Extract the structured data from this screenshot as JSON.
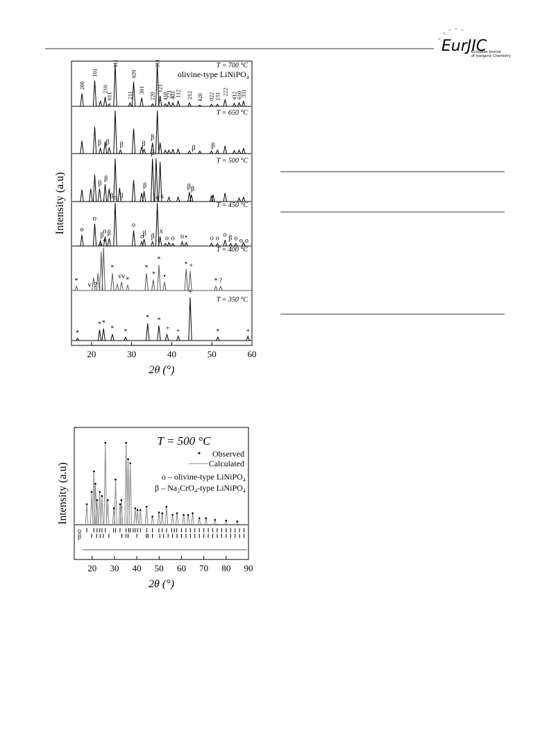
{
  "header": {
    "logo": "EurJIC",
    "journal_1": "European Journal",
    "journal_2": "of Inorganic Chemistry"
  },
  "chart_data": [
    {
      "type": "peaks",
      "xlabel": "2θ (°)",
      "ylabel": "Intensity (a.u)",
      "xlim": [
        15,
        60
      ],
      "xticks": [
        20,
        30,
        40,
        50,
        60
      ],
      "series": [
        {
          "name": "T = 700 °C",
          "subtitle": "olivine-type LiNiPO₄",
          "color": "#000000",
          "label_orientation": "vertical",
          "x": [
            17.6,
            20.8,
            22.2,
            23.4,
            24.4,
            25.9,
            29.6,
            30.5,
            32.5,
            35.2,
            36.4,
            37.1,
            38.4,
            39.3,
            40.3,
            41.6,
            44.4,
            47.0,
            49.9,
            51.4,
            53.3,
            55.6,
            56.8,
            57.9
          ],
          "values": [
            30,
            60,
            12,
            22,
            6,
            100,
            8,
            57,
            20,
            6,
            100,
            24,
            6,
            10,
            8,
            12,
            8,
            3,
            5,
            5,
            16,
            7,
            8,
            12
          ],
          "annotations": [
            {
              "x": 17.6,
              "label": "200"
            },
            {
              "x": 20.8,
              "label": "101"
            },
            {
              "x": 23.4,
              "label": "210"
            },
            {
              "x": 24.4,
              "label": "011"
            },
            {
              "x": 25.9,
              "label": "111"
            },
            {
              "x": 29.6,
              "label": "211"
            },
            {
              "x": 30.5,
              "label": "020"
            },
            {
              "x": 32.5,
              "label": "301"
            },
            {
              "x": 35.2,
              "label": "220"
            },
            {
              "x": 36.4,
              "label": "311"
            },
            {
              "x": 37.1,
              "label": "121"
            },
            {
              "x": 38.4,
              "label": "410"
            },
            {
              "x": 39.3,
              "label": "221"
            },
            {
              "x": 40.3,
              "label": "401"
            },
            {
              "x": 41.6,
              "label": "112"
            },
            {
              "x": 44.4,
              "label": "212"
            },
            {
              "x": 47.0,
              "label": "420"
            },
            {
              "x": 49.9,
              "label": "022"
            },
            {
              "x": 51.4,
              "label": "131"
            },
            {
              "x": 53.3,
              "label": "222"
            },
            {
              "x": 55.6,
              "label": "412"
            },
            {
              "x": 56.8,
              "label": "610"
            },
            {
              "x": 57.9,
              "label": "331"
            }
          ]
        },
        {
          "name": "T = 650 °C",
          "color": "#000000",
          "x": [
            17.6,
            20.8,
            22.2,
            23.4,
            24.4,
            25.9,
            27.2,
            30.5,
            32.5,
            33.1,
            35.2,
            36.4,
            37.1,
            38.4,
            39.3,
            40.3,
            41.6,
            44.4,
            47.0,
            49.9,
            51.4,
            53.3,
            55.6,
            56.8,
            57.9
          ],
          "values": [
            30,
            62,
            12,
            28,
            14,
            100,
            8,
            58,
            16,
            10,
            25,
            100,
            25,
            8,
            8,
            10,
            10,
            6,
            6,
            6,
            8,
            18,
            7,
            8,
            12
          ],
          "annotations": [
            {
              "x": 22.0,
              "label": "β"
            },
            {
              "x": 24.0,
              "label": "β"
            },
            {
              "x": 27.5,
              "label": "β"
            },
            {
              "x": 33.0,
              "label": "β"
            },
            {
              "x": 35.2,
              "label": "β"
            },
            {
              "x": 45.5,
              "label": "β"
            },
            {
              "x": 50.3,
              "label": "β"
            }
          ]
        },
        {
          "name": "T = 500 °C",
          "color": "#000000",
          "x": [
            17.6,
            19.8,
            20.8,
            22.0,
            23.4,
            24.4,
            25.9,
            27.0,
            30.5,
            32.5,
            33.1,
            35.2,
            36.1,
            37.1,
            39.3,
            41.6,
            44.4,
            44.9,
            49.9,
            50.3,
            53.3,
            56.8,
            57.9
          ],
          "values": [
            28,
            30,
            62,
            30,
            40,
            30,
            100,
            32,
            50,
            20,
            24,
            100,
            100,
            92,
            10,
            10,
            22,
            16,
            14,
            16,
            20,
            8,
            10
          ],
          "annotations": [
            {
              "x": 22.1,
              "label": "β"
            },
            {
              "x": 23.6,
              "label": "β"
            },
            {
              "x": 25.0,
              "label": "β"
            },
            {
              "x": 27.5,
              "label": "β"
            },
            {
              "x": 33.3,
              "label": "β"
            },
            {
              "x": 35.2,
              "label": "β"
            },
            {
              "x": 37.6,
              "label": "x"
            },
            {
              "x": 44.3,
              "label": "β"
            },
            {
              "x": 45.2,
              "label": "β"
            }
          ]
        },
        {
          "name": "T = 450 °C",
          "color": "#000000",
          "x": [
            17.6,
            20.8,
            22.2,
            23.4,
            24.4,
            25.9,
            30.5,
            32.5,
            33.1,
            35.2,
            36.4,
            37.1,
            38.4,
            39.3,
            40.3,
            42.6,
            43.6,
            49.9,
            51.4,
            53.3,
            54.7,
            56.0,
            57.9
          ],
          "values": [
            26,
            52,
            12,
            22,
            18,
            100,
            36,
            10,
            16,
            10,
            100,
            22,
            6,
            8,
            6,
            10,
            8,
            6,
            6,
            14,
            6,
            6,
            8
          ],
          "annotations": [
            {
              "x": 17.6,
              "label": "o"
            },
            {
              "x": 20.8,
              "label": "o"
            },
            {
              "x": 22.6,
              "label": "β"
            },
            {
              "x": 23.3,
              "label": "o"
            },
            {
              "x": 24.4,
              "label": "β"
            },
            {
              "x": 25.9,
              "label": "o"
            },
            {
              "x": 30.5,
              "label": "o"
            },
            {
              "x": 32.6,
              "label": "o"
            },
            {
              "x": 33.2,
              "label": "β"
            },
            {
              "x": 35.3,
              "label": "β"
            },
            {
              "x": 36.4,
              "label": "o"
            },
            {
              "x": 37.4,
              "label": "x"
            },
            {
              "x": 38.8,
              "label": "o"
            },
            {
              "x": 40.3,
              "label": "o"
            },
            {
              "x": 42.6,
              "label": "o"
            },
            {
              "x": 43.6,
              "label": "•"
            },
            {
              "x": 50.0,
              "label": "o"
            },
            {
              "x": 51.4,
              "label": "o"
            },
            {
              "x": 53.3,
              "label": "o"
            },
            {
              "x": 54.6,
              "label": "β"
            },
            {
              "x": 56.0,
              "label": "o"
            },
            {
              "x": 57.3,
              "label": "o"
            },
            {
              "x": 58.7,
              "label": "o"
            }
          ]
        },
        {
          "name": "T = 400 °C",
          "color": "#555555",
          "x": [
            16.2,
            20.5,
            21.6,
            22.4,
            23.0,
            25.2,
            26.4,
            27.5,
            29.0,
            33.7,
            35.4,
            36.8,
            38.2,
            43.6,
            44.6,
            51.0,
            52.2
          ],
          "values": [
            10,
            30,
            40,
            90,
            100,
            40,
            15,
            20,
            12,
            40,
            25,
            60,
            20,
            50,
            45,
            10,
            10
          ],
          "annotations": [
            {
              "x": 16.2,
              "label": "*"
            },
            {
              "x": 19.5,
              "label": "v"
            },
            {
              "x": 21.0,
              "label": "?"
            },
            {
              "x": 22.3,
              "label": "*"
            },
            {
              "x": 23.2,
              "label": "*"
            },
            {
              "x": 25.2,
              "label": "*"
            },
            {
              "x": 27.5,
              "label": "vv"
            },
            {
              "x": 29.0,
              "label": "*"
            },
            {
              "x": 33.7,
              "label": "*"
            },
            {
              "x": 35.5,
              "label": "*"
            },
            {
              "x": 36.8,
              "label": "*"
            },
            {
              "x": 38.2,
              "label": "•"
            },
            {
              "x": 43.6,
              "label": "•"
            },
            {
              "x": 44.8,
              "label": "+"
            },
            {
              "x": 51.0,
              "label": "*"
            },
            {
              "x": 52.2,
              "label": "?"
            }
          ]
        },
        {
          "name": "T = 350 °C",
          "color": "#000000",
          "x": [
            16.5,
            22.0,
            23.0,
            25.2,
            28.5,
            34.0,
            36.8,
            38.8,
            41.6,
            44.6,
            51.5,
            59.0
          ],
          "values": [
            5,
            25,
            28,
            15,
            8,
            40,
            35,
            15,
            10,
            100,
            8,
            10
          ],
          "annotations": [
            {
              "x": 16.5,
              "label": "*"
            },
            {
              "x": 22.0,
              "label": "*"
            },
            {
              "x": 23.0,
              "label": "*"
            },
            {
              "x": 25.2,
              "label": "*"
            },
            {
              "x": 28.5,
              "label": "*"
            },
            {
              "x": 34.0,
              "label": "*"
            },
            {
              "x": 36.8,
              "label": "*"
            },
            {
              "x": 39.0,
              "label": "+"
            },
            {
              "x": 41.6,
              "label": "+"
            },
            {
              "x": 44.6,
              "label": "+"
            },
            {
              "x": 51.5,
              "label": "*"
            },
            {
              "x": 59.0,
              "label": "+"
            }
          ]
        }
      ]
    },
    {
      "type": "rietveld",
      "title": "T = 500 °C",
      "xlabel": "2θ (°)",
      "ylabel": "Intensity (a.u)",
      "xlim": [
        12,
        90
      ],
      "xticks": [
        20,
        30,
        40,
        50,
        60,
        70,
        80,
        90
      ],
      "series": [
        {
          "name": "Observed",
          "color": "#000000",
          "x": [
            17.6,
            19.8,
            20.8,
            21.5,
            22.2,
            23.4,
            24.4,
            25.9,
            27.0,
            29.7,
            30.5,
            32.5,
            33.1,
            35.2,
            36.1,
            37.1,
            39.3,
            40.3,
            41.6,
            44.4,
            47,
            49.9,
            51.4,
            53.3,
            56,
            58,
            61,
            63,
            65,
            68,
            71,
            75,
            80,
            85
          ],
          "values": [
            25,
            40,
            65,
            50,
            30,
            40,
            35,
            100,
            30,
            20,
            55,
            25,
            30,
            100,
            80,
            75,
            20,
            18,
            18,
            22,
            10,
            15,
            14,
            22,
            12,
            14,
            12,
            12,
            14,
            8,
            8,
            6,
            5,
            4
          ]
        },
        {
          "name": "Calculated",
          "color": "#888888",
          "x": [
            17.6,
            19.8,
            20.8,
            21.5,
            22.2,
            23.4,
            24.4,
            25.9,
            27.0,
            29.7,
            30.5,
            32.5,
            33.1,
            35.2,
            36.1,
            37.1,
            39.3,
            40.3,
            41.6,
            44.4,
            47,
            49.9,
            51.4,
            53.3,
            56,
            58,
            61,
            63,
            65,
            68,
            71,
            75,
            80,
            85
          ],
          "values": [
            25,
            40,
            65,
            50,
            30,
            40,
            35,
            100,
            30,
            20,
            55,
            25,
            30,
            100,
            80,
            75,
            20,
            18,
            18,
            22,
            10,
            15,
            14,
            22,
            12,
            14,
            12,
            12,
            14,
            8,
            8,
            6,
            5,
            4
          ]
        }
      ],
      "notes": [
        "o – olivine-type LiNiPO₄",
        "β – Na₂CrO₄-type LiNiPO₄"
      ],
      "reflections": [
        {
          "label": "o",
          "x": [
            17.6,
            20.8,
            22.2,
            23.4,
            24.4,
            25.9,
            29.6,
            30.5,
            32.5,
            35.2,
            36.4,
            37.1,
            38.4,
            39.3,
            40.3,
            41.6,
            44.4,
            47,
            49.9,
            51.4,
            53.3,
            55.6,
            56.8,
            57.9,
            60,
            62,
            64,
            66,
            68,
            70,
            72,
            74,
            76,
            78,
            80,
            82,
            84,
            86,
            88
          ]
        },
        {
          "label": "β",
          "x": [
            19.8,
            22.0,
            23.6,
            25.0,
            27.5,
            33.3,
            35.2,
            36.1,
            40,
            44.3,
            45,
            47,
            50.3,
            52,
            54,
            56,
            58,
            60,
            62,
            64,
            66,
            68,
            70,
            72,
            74,
            76,
            78,
            80,
            82,
            84,
            86,
            88
          ]
        }
      ]
    }
  ]
}
